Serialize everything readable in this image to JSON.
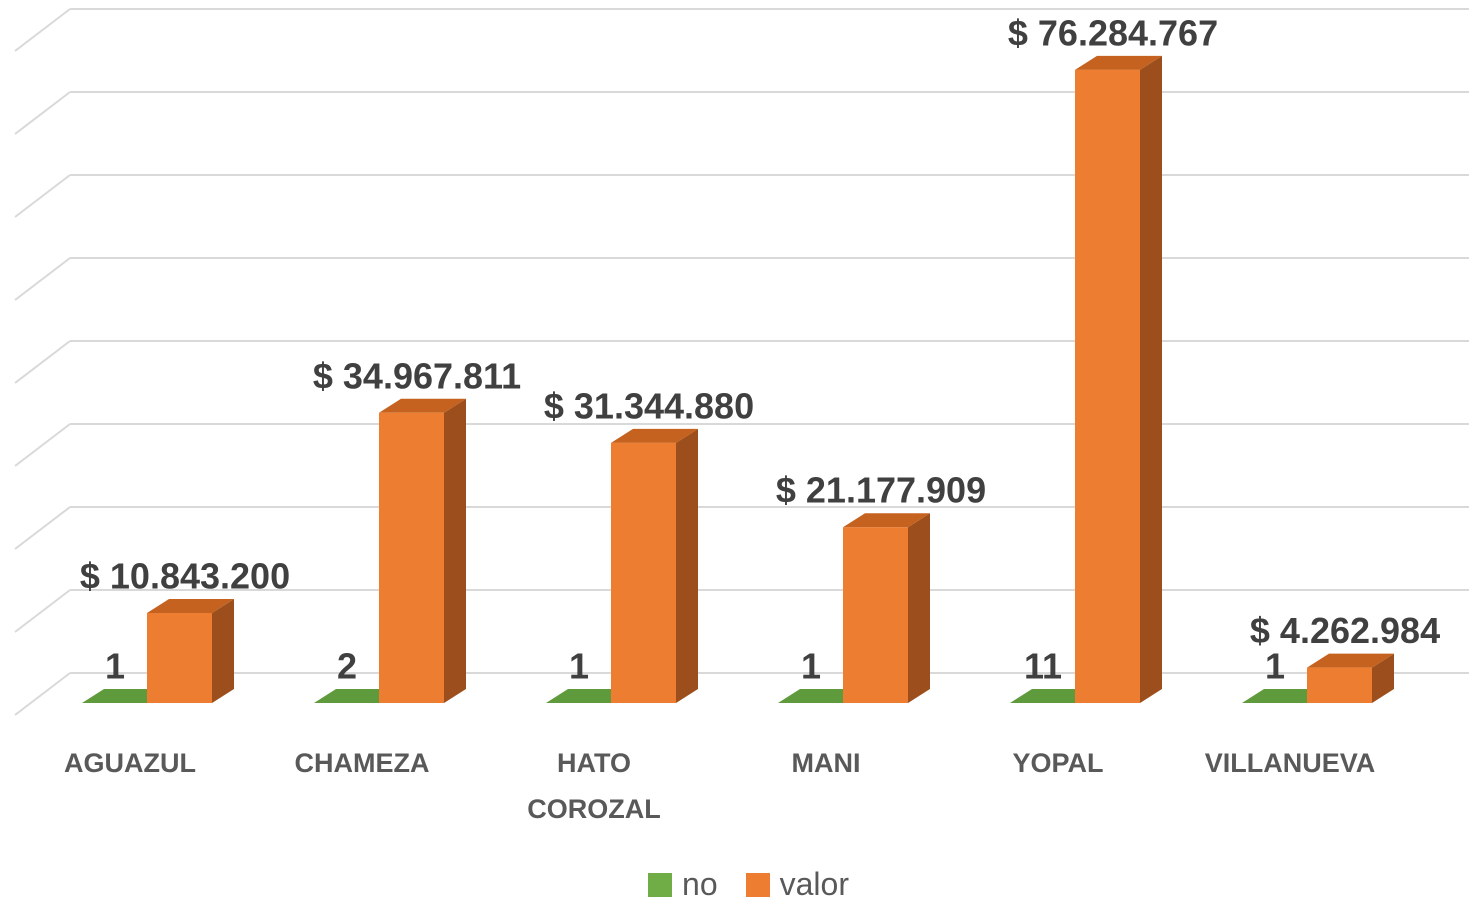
{
  "chart_data": {
    "type": "bar3d",
    "categories": [
      "AGUAZUL",
      "CHAMEZA",
      "HATO COROZAL",
      "MANI",
      "YOPAL",
      "VILLANUEVA"
    ],
    "series": [
      {
        "name": "no",
        "color": "#70ad47",
        "side": "#4e7a31",
        "top": "#5f9a3c",
        "values": [
          1,
          2,
          1,
          1,
          11,
          1
        ]
      },
      {
        "name": "valor",
        "color": "#ed7d31",
        "side": "#9c4f1c",
        "top": "#c5621f",
        "values": [
          10843200,
          34967811,
          31344880,
          21177909,
          76284767,
          4262984
        ],
        "value_labels": [
          "$ 10.843.200",
          "$ 34.967.811",
          "$ 31.344.880",
          "$ 21.177.909",
          "$ 76.284.767",
          "$ 4.262.984"
        ]
      }
    ],
    "ylim": [
      0,
      80000000
    ],
    "yticks": [
      0,
      10000000,
      20000000,
      30000000,
      40000000,
      50000000,
      60000000,
      70000000,
      80000000
    ],
    "grid": true
  }
}
